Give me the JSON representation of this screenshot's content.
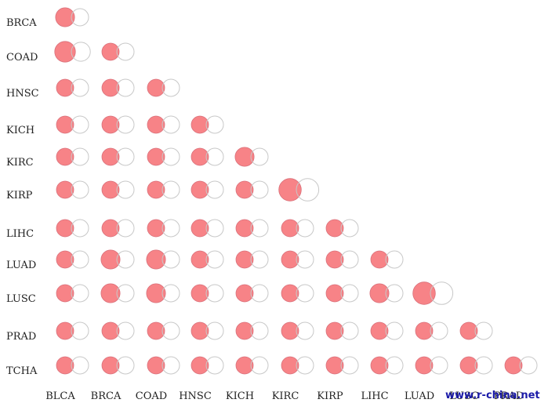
{
  "chart_data": {
    "type": "venn-matrix",
    "title": "",
    "rows": [
      "BRCA",
      "COAD",
      "HNSC",
      "KICH",
      "KIRC",
      "KIRP",
      "LIHC",
      "LUAD",
      "LUSC",
      "PRAD",
      "TCHA"
    ],
    "columns": [
      "BLCA",
      "BRCA",
      "COAD",
      "HNSC",
      "KICH",
      "KIRC",
      "KIRP",
      "LIHC",
      "LUAD",
      "LUSC",
      "PRAD"
    ],
    "size_scale": "relative circle radius per set (row set / column set)",
    "cells": [
      {
        "row": "BRCA",
        "col": "BLCA",
        "a": 1.1,
        "b": 1.0
      },
      {
        "row": "COAD",
        "col": "BLCA",
        "a": 1.2,
        "b": 1.1
      },
      {
        "row": "COAD",
        "col": "BRCA",
        "a": 1.0,
        "b": 1.0
      },
      {
        "row": "HNSC",
        "col": "BLCA",
        "a": 1.0,
        "b": 1.0
      },
      {
        "row": "HNSC",
        "col": "BRCA",
        "a": 1.0,
        "b": 1.0
      },
      {
        "row": "HNSC",
        "col": "COAD",
        "a": 1.0,
        "b": 1.0
      },
      {
        "row": "KICH",
        "col": "BLCA",
        "a": 1.0,
        "b": 1.0
      },
      {
        "row": "KICH",
        "col": "BRCA",
        "a": 1.0,
        "b": 1.0
      },
      {
        "row": "KICH",
        "col": "COAD",
        "a": 1.0,
        "b": 1.0
      },
      {
        "row": "KICH",
        "col": "HNSC",
        "a": 1.0,
        "b": 1.0
      },
      {
        "row": "KIRC",
        "col": "BLCA",
        "a": 1.0,
        "b": 1.0
      },
      {
        "row": "KIRC",
        "col": "BRCA",
        "a": 1.0,
        "b": 1.0
      },
      {
        "row": "KIRC",
        "col": "COAD",
        "a": 1.0,
        "b": 1.0
      },
      {
        "row": "KIRC",
        "col": "HNSC",
        "a": 1.0,
        "b": 1.0
      },
      {
        "row": "KIRC",
        "col": "KICH",
        "a": 1.1,
        "b": 1.0
      },
      {
        "row": "KIRP",
        "col": "BLCA",
        "a": 1.0,
        "b": 1.0
      },
      {
        "row": "KIRP",
        "col": "BRCA",
        "a": 1.0,
        "b": 1.0
      },
      {
        "row": "KIRP",
        "col": "COAD",
        "a": 1.0,
        "b": 1.0
      },
      {
        "row": "KIRP",
        "col": "HNSC",
        "a": 1.0,
        "b": 1.0
      },
      {
        "row": "KIRP",
        "col": "KICH",
        "a": 1.0,
        "b": 1.0
      },
      {
        "row": "KIRP",
        "col": "KIRC",
        "a": 1.3,
        "b": 1.3
      },
      {
        "row": "LIHC",
        "col": "BLCA",
        "a": 1.0,
        "b": 1.0
      },
      {
        "row": "LIHC",
        "col": "BRCA",
        "a": 1.0,
        "b": 1.0
      },
      {
        "row": "LIHC",
        "col": "COAD",
        "a": 1.0,
        "b": 1.0
      },
      {
        "row": "LIHC",
        "col": "HNSC",
        "a": 1.0,
        "b": 1.0
      },
      {
        "row": "LIHC",
        "col": "KICH",
        "a": 1.0,
        "b": 1.0
      },
      {
        "row": "LIHC",
        "col": "KIRC",
        "a": 1.0,
        "b": 1.0
      },
      {
        "row": "LIHC",
        "col": "KIRP",
        "a": 1.0,
        "b": 1.0
      },
      {
        "row": "LUAD",
        "col": "BLCA",
        "a": 1.0,
        "b": 1.0
      },
      {
        "row": "LUAD",
        "col": "BRCA",
        "a": 1.1,
        "b": 1.0
      },
      {
        "row": "LUAD",
        "col": "COAD",
        "a": 1.1,
        "b": 1.0
      },
      {
        "row": "LUAD",
        "col": "HNSC",
        "a": 1.0,
        "b": 1.0
      },
      {
        "row": "LUAD",
        "col": "KICH",
        "a": 1.0,
        "b": 1.0
      },
      {
        "row": "LUAD",
        "col": "KIRC",
        "a": 1.0,
        "b": 1.0
      },
      {
        "row": "LUAD",
        "col": "KIRP",
        "a": 1.0,
        "b": 1.0
      },
      {
        "row": "LUAD",
        "col": "LIHC",
        "a": 1.0,
        "b": 1.0
      },
      {
        "row": "LUSC",
        "col": "BLCA",
        "a": 1.0,
        "b": 1.0
      },
      {
        "row": "LUSC",
        "col": "BRCA",
        "a": 1.1,
        "b": 1.0
      },
      {
        "row": "LUSC",
        "col": "COAD",
        "a": 1.1,
        "b": 1.0
      },
      {
        "row": "LUSC",
        "col": "HNSC",
        "a": 1.0,
        "b": 1.0
      },
      {
        "row": "LUSC",
        "col": "KICH",
        "a": 1.0,
        "b": 1.0
      },
      {
        "row": "LUSC",
        "col": "KIRC",
        "a": 1.0,
        "b": 1.0
      },
      {
        "row": "LUSC",
        "col": "KIRP",
        "a": 1.0,
        "b": 1.0
      },
      {
        "row": "LUSC",
        "col": "LIHC",
        "a": 1.1,
        "b": 1.0
      },
      {
        "row": "LUSC",
        "col": "LUAD",
        "a": 1.3,
        "b": 1.3
      },
      {
        "row": "PRAD",
        "col": "BLCA",
        "a": 1.0,
        "b": 1.0
      },
      {
        "row": "PRAD",
        "col": "BRCA",
        "a": 1.0,
        "b": 1.0
      },
      {
        "row": "PRAD",
        "col": "COAD",
        "a": 1.0,
        "b": 1.0
      },
      {
        "row": "PRAD",
        "col": "HNSC",
        "a": 1.0,
        "b": 1.0
      },
      {
        "row": "PRAD",
        "col": "KICH",
        "a": 1.0,
        "b": 1.0
      },
      {
        "row": "PRAD",
        "col": "KIRC",
        "a": 1.0,
        "b": 1.0
      },
      {
        "row": "PRAD",
        "col": "KIRP",
        "a": 1.0,
        "b": 1.0
      },
      {
        "row": "PRAD",
        "col": "LIHC",
        "a": 1.0,
        "b": 1.0
      },
      {
        "row": "PRAD",
        "col": "LUAD",
        "a": 1.0,
        "b": 1.0
      },
      {
        "row": "PRAD",
        "col": "LUSC",
        "a": 1.0,
        "b": 1.0
      },
      {
        "row": "TCHA",
        "col": "BLCA",
        "a": 1.0,
        "b": 1.0
      },
      {
        "row": "TCHA",
        "col": "BRCA",
        "a": 1.0,
        "b": 1.0
      },
      {
        "row": "TCHA",
        "col": "COAD",
        "a": 1.0,
        "b": 1.0
      },
      {
        "row": "TCHA",
        "col": "HNSC",
        "a": 1.0,
        "b": 1.0
      },
      {
        "row": "TCHA",
        "col": "KICH",
        "a": 1.0,
        "b": 1.0
      },
      {
        "row": "TCHA",
        "col": "KIRC",
        "a": 1.0,
        "b": 1.0
      },
      {
        "row": "TCHA",
        "col": "KIRP",
        "a": 1.0,
        "b": 1.0
      },
      {
        "row": "TCHA",
        "col": "LIHC",
        "a": 1.0,
        "b": 1.0
      },
      {
        "row": "TCHA",
        "col": "LUAD",
        "a": 1.0,
        "b": 1.0
      },
      {
        "row": "TCHA",
        "col": "LUSC",
        "a": 1.0,
        "b": 1.0
      },
      {
        "row": "TCHA",
        "col": "PRAD",
        "a": 1.0,
        "b": 1.0
      }
    ],
    "colors": {
      "filled": "#f45a5f",
      "filled_opacity": 0.75,
      "outline": "#c8c8c8"
    },
    "grid": false,
    "legend": "none"
  },
  "watermark": {
    "text": "www.r-china.net",
    "color": "#1a1aa8"
  }
}
